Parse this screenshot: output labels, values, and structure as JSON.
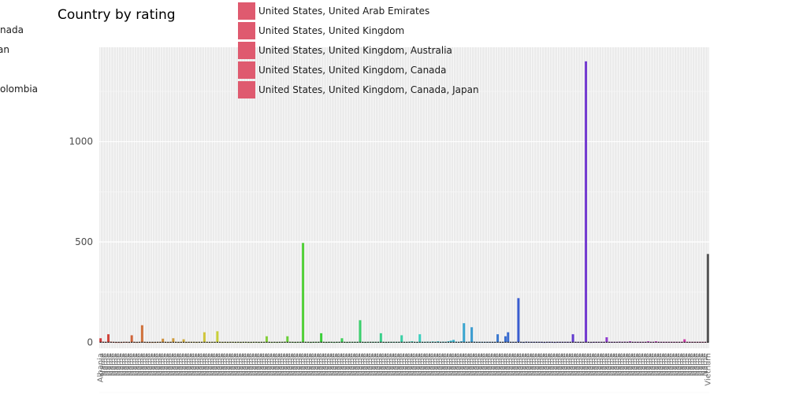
{
  "chart_data": {
    "type": "bar",
    "title": "Country by rating",
    "xlabel": "",
    "ylabel": "",
    "ylim": [
      -30,
      1470
    ],
    "y_ticks": [
      0,
      500,
      1000
    ],
    "grid": true,
    "legend_position": "top",
    "legend_entries_left": [
      "nada",
      "an",
      "olombia"
    ],
    "legend_entries": [
      "United States, United Arab Emirates",
      "United States, United Kingdom",
      "United States, United Kingdom, Australia",
      "United States, United Kingdom, Canada",
      "United States, United Kingdom, Canada, Japan"
    ],
    "category_count": 200,
    "first_category_label": "Albania",
    "last_category_label": "Vietnam",
    "values": [
      20,
      3,
      2,
      40,
      3,
      2,
      1,
      1,
      1,
      2,
      2,
      1,
      35,
      2,
      1,
      2,
      85,
      2,
      1,
      1,
      1,
      1,
      2,
      2,
      18,
      2,
      1,
      2,
      20,
      2,
      1,
      2,
      15,
      1,
      2,
      2,
      2,
      1,
      2,
      2,
      50,
      2,
      1,
      2,
      2,
      55,
      2,
      1,
      2,
      1,
      2,
      2,
      1,
      2,
      1,
      2,
      2,
      1,
      1,
      2,
      2,
      1,
      2,
      2,
      30,
      2,
      1,
      2,
      1,
      2,
      2,
      3,
      30,
      2,
      2,
      1,
      2,
      2,
      495,
      2,
      2,
      1,
      2,
      2,
      2,
      45,
      2,
      1,
      2,
      2,
      1,
      2,
      2,
      20,
      2,
      1,
      2,
      2,
      2,
      2,
      110,
      2,
      1,
      2,
      2,
      2,
      2,
      2,
      45,
      2,
      1,
      2,
      2,
      2,
      2,
      2,
      35,
      2,
      2,
      3,
      5,
      2,
      1,
      40,
      2,
      2,
      3,
      2,
      4,
      2,
      5,
      2,
      3,
      2,
      5,
      8,
      12,
      3,
      2,
      5,
      95,
      2,
      3,
      75,
      3,
      2,
      2,
      2,
      2,
      2,
      2,
      2,
      2,
      40,
      2,
      2,
      30,
      50,
      2,
      2,
      2,
      220,
      2,
      1,
      3,
      2,
      2,
      2,
      2,
      2,
      2,
      1,
      2,
      2,
      2,
      1,
      2,
      2,
      2,
      2,
      2,
      2,
      40,
      2,
      2,
      2,
      2,
      1400,
      2,
      1,
      2,
      2,
      2,
      2,
      2,
      25,
      2,
      2,
      2,
      2
    ],
    "extra_values": [
      3,
      2,
      3,
      2,
      5,
      2,
      2,
      2,
      2,
      2,
      2,
      5,
      2,
      2,
      5,
      2,
      2,
      2,
      2,
      2,
      2,
      2,
      2,
      2,
      2,
      15,
      2,
      2,
      2,
      2,
      2,
      2,
      2,
      2,
      440
    ]
  }
}
